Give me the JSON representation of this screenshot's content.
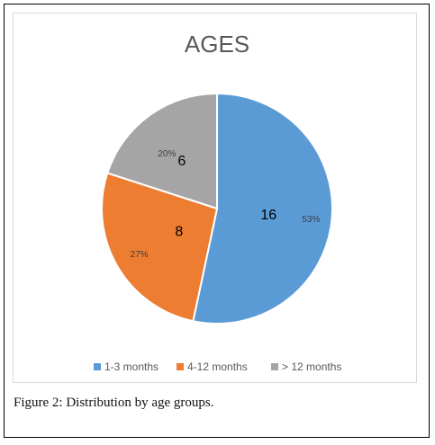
{
  "chart_data": {
    "type": "pie",
    "title": "AGES",
    "categories": [
      "1-3 months",
      "4-12 months",
      "> 12 months"
    ],
    "values": [
      16,
      8,
      6
    ],
    "percent_labels": [
      "53%",
      "27%",
      "20%"
    ],
    "colors": [
      "#5b9bd5",
      "#ed7d31",
      "#a5a5a5"
    ],
    "legend_position": "bottom",
    "start_angle_deg": 0,
    "direction": "clockwise"
  },
  "caption": "Figure 2: Distribution by age groups."
}
